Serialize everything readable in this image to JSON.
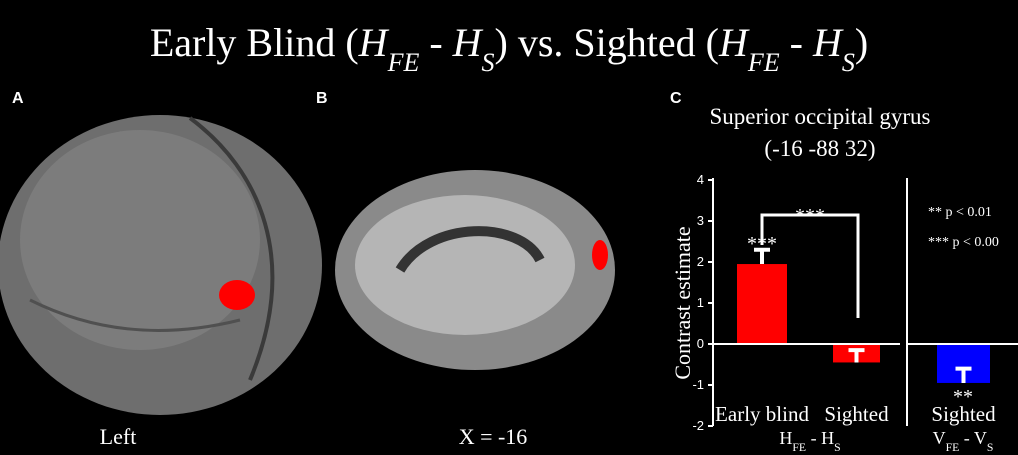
{
  "title_parts": [
    {
      "text": "Early Blind (",
      "style": "normal"
    },
    {
      "text": "H",
      "style": "italic"
    },
    {
      "text": "FE",
      "style": "sub"
    },
    {
      "text": " - ",
      "style": "normal"
    },
    {
      "text": "H",
      "style": "italic"
    },
    {
      "text": "S",
      "style": "sub"
    },
    {
      "text": ") vs. Sighted (",
      "style": "normal"
    },
    {
      "text": "H",
      "style": "italic"
    },
    {
      "text": "FE",
      "style": "sub"
    },
    {
      "text": " - ",
      "style": "normal"
    },
    {
      "text": "H",
      "style": "italic"
    },
    {
      "text": "S",
      "style": "sub"
    },
    {
      "text": ")",
      "style": "normal"
    }
  ],
  "panels": [
    {
      "label": "A",
      "caption": "Left"
    },
    {
      "label": "B",
      "caption": "X = -16"
    },
    {
      "label": "C"
    }
  ],
  "chart_data": [
    {
      "type": "bar",
      "title": "Superior occipital gyrus",
      "subtitle": "(-16 -88 32)",
      "ylabel": "Contrast estimate",
      "categories": [
        "Early blind",
        "Sighted"
      ],
      "values": [
        1.95,
        -0.45
      ],
      "errors": [
        0.35,
        0.3
      ],
      "colors": [
        "#ff0000",
        "#ff0000"
      ],
      "group_label_parts": [
        {
          "text": "H",
          "style": "normal"
        },
        {
          "text": "FE",
          "style": "sub"
        },
        {
          "text": " - ",
          "style": "normal"
        },
        {
          "text": "H",
          "style": "normal"
        },
        {
          "text": "S",
          "style": "sub"
        }
      ],
      "ylim": [
        -2,
        4
      ],
      "yticks": [
        -2,
        -1,
        0,
        1,
        2,
        3,
        4
      ],
      "annotations": [
        "***",
        "***"
      ]
    },
    {
      "type": "bar",
      "categories": [
        "Sighted"
      ],
      "values": [
        -0.95
      ],
      "errors": [
        0.35
      ],
      "colors": [
        "#0000ff"
      ],
      "group_label_parts": [
        {
          "text": "V",
          "style": "normal"
        },
        {
          "text": "FE",
          "style": "sub"
        },
        {
          "text": " - ",
          "style": "normal"
        },
        {
          "text": "V",
          "style": "normal"
        },
        {
          "text": "S",
          "style": "sub"
        }
      ],
      "ylim": [
        -2,
        4
      ],
      "annotations": [
        "**"
      ],
      "notes": [
        "** p < 0.01",
        "*** p < 0.00"
      ]
    }
  ]
}
